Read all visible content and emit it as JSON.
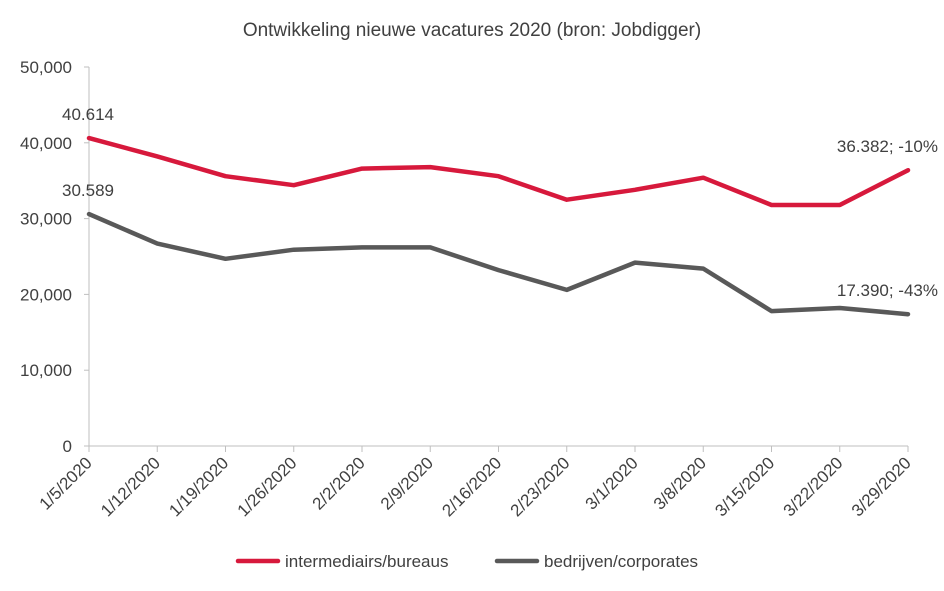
{
  "chart_data": {
    "type": "line",
    "title": "Ontwikkeling nieuwe vacatures 2020 (bron: Jobdigger)",
    "xlabel": "",
    "ylabel": "",
    "ylim": [
      0,
      50000
    ],
    "yticks": [
      0,
      10000,
      20000,
      30000,
      40000,
      50000
    ],
    "ytick_labels": [
      "0",
      "10,000",
      "20,000",
      "30,000",
      "40,000",
      "50,000"
    ],
    "categories": [
      "1/5/2020",
      "1/12/2020",
      "1/19/2020",
      "1/26/2020",
      "2/2/2020",
      "2/9/2020",
      "2/16/2020",
      "2/23/2020",
      "3/1/2020",
      "3/8/2020",
      "3/15/2020",
      "3/22/2020",
      "3/29/2020"
    ],
    "series": [
      {
        "name": "intermediairs/bureaus",
        "color": "#d7193c",
        "values": [
          40614,
          38200,
          35600,
          34400,
          36600,
          36800,
          35600,
          32500,
          33800,
          35400,
          31800,
          31800,
          36382
        ]
      },
      {
        "name": "bedrijven/corporates",
        "color": "#595959",
        "values": [
          30589,
          26700,
          24700,
          25900,
          26200,
          26200,
          23200,
          20600,
          24200,
          23400,
          17800,
          18200,
          17390
        ]
      }
    ],
    "data_labels": [
      {
        "series": 0,
        "index": 0,
        "text": "40.614"
      },
      {
        "series": 0,
        "index": 12,
        "text": "36.382; -10%"
      },
      {
        "series": 1,
        "index": 0,
        "text": "30.589"
      },
      {
        "series": 1,
        "index": 12,
        "text": "17.390; -43%"
      }
    ],
    "grid": false,
    "legend_position": "bottom"
  }
}
